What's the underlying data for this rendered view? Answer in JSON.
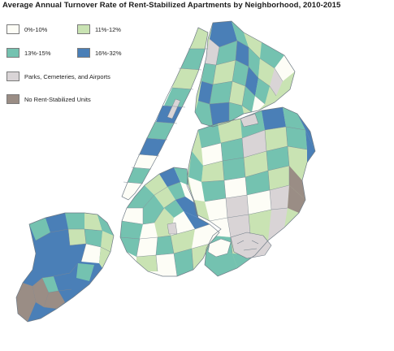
{
  "title": "Average Annual Turnover Rate of Rent-Stabilized Apartments by Neighborhood, 2010-2015",
  "legend": {
    "items": [
      {
        "label": "0%-10%",
        "color": "#fdfdf6"
      },
      {
        "label": "11%-12%",
        "color": "#c9e3b3"
      },
      {
        "label": "13%-15%",
        "color": "#74c2b0"
      },
      {
        "label": "16%-32%",
        "color": "#4a7fb7"
      },
      {
        "label": "Parks, Cemeteries, and Airports",
        "color": "#d9d4d6"
      },
      {
        "label": "No Rent-Stabilized Units",
        "color": "#9a8d85"
      }
    ]
  },
  "colors": {
    "boundary": "#6f7b86",
    "water": "#ffffff"
  }
}
